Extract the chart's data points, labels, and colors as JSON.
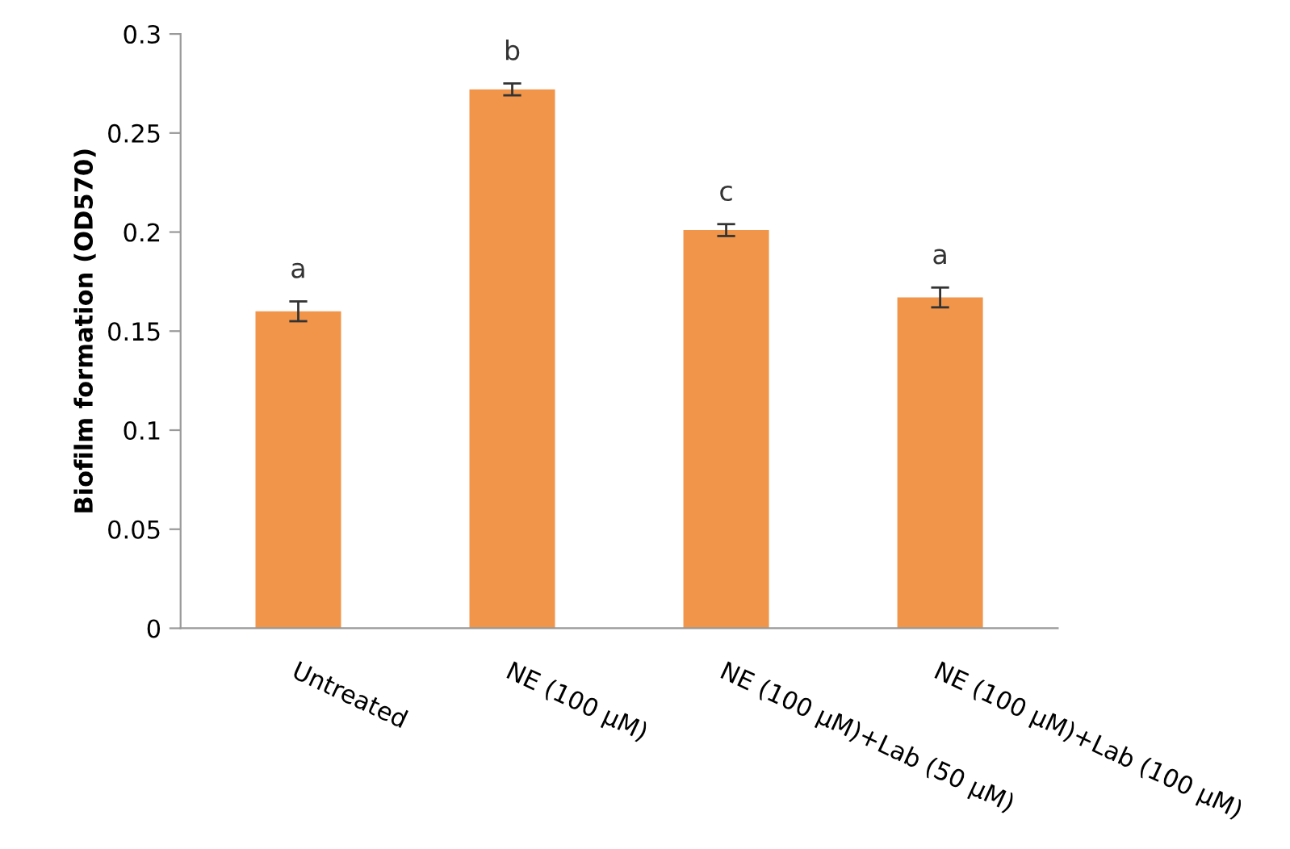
{
  "chart_data": {
    "type": "bar",
    "ylabel": "Biofilm formation (OD570)",
    "categories": [
      "Untreated",
      "NE (100 μM)",
      "NE (100 μM)+Lab (50 μM)",
      "NE (100 μM)+Lab (100 μM)"
    ],
    "values": [
      0.16,
      0.272,
      0.201,
      0.167
    ],
    "errors": [
      0.005,
      0.003,
      0.003,
      0.005
    ],
    "color": "#f0954a",
    "ylim": [
      0,
      0.3
    ],
    "yticks": [
      {
        "value": 0,
        "label": "0"
      },
      0.05,
      0.1,
      0.15,
      0.2,
      0.25,
      0.3
    ],
    "grid": false,
    "legend": false,
    "annotations": [
      {
        "text": "a",
        "x": "Untreated",
        "y": 0.165
      },
      {
        "text": "b",
        "x": "NE (100 μM)",
        "y": 0.275
      },
      {
        "text": "c",
        "x": "NE (100 μM)+Lab (50 μM)",
        "y": 0.204
      },
      {
        "text": "a",
        "x": "NE (100 μM)+Lab (100 μM)",
        "y": 0.172
      }
    ]
  }
}
